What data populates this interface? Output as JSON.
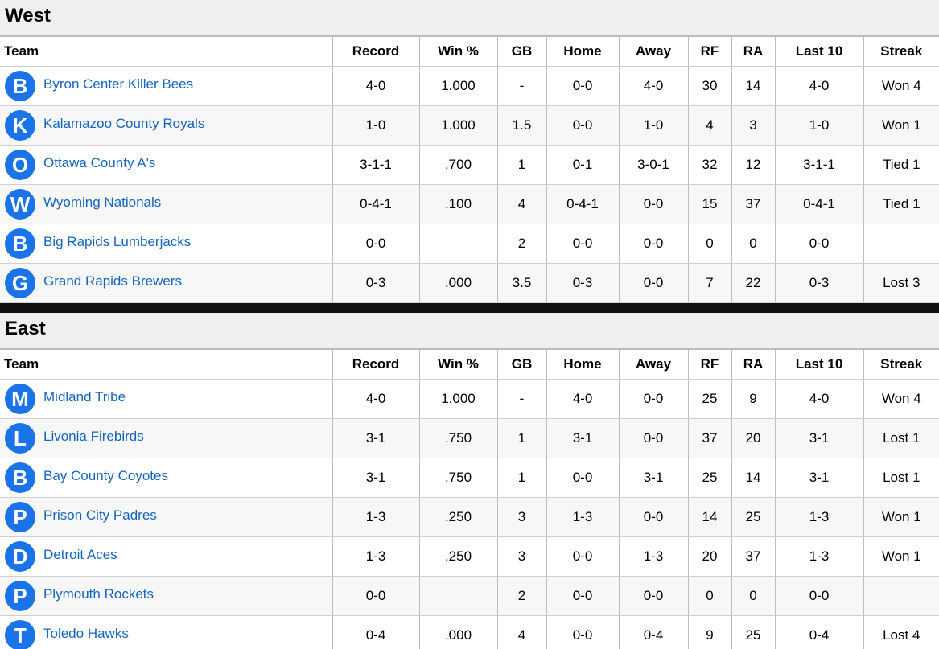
{
  "columns": [
    "Team",
    "Record",
    "Win %",
    "GB",
    "Home",
    "Away",
    "RF",
    "RA",
    "Last 10",
    "Streak"
  ],
  "colors": {
    "logo_bg": "#1a73e8",
    "link": "#1565c0",
    "header_bg": "#efefef",
    "separator": "#111111"
  },
  "divisions": [
    {
      "name": "West",
      "teams": [
        {
          "initial": "B",
          "name": "Byron Center Killer Bees",
          "record": "4-0",
          "win_pct": "1.000",
          "gb": "-",
          "home": "0-0",
          "away": "4-0",
          "rf": "30",
          "ra": "14",
          "last10": "4-0",
          "streak": "Won 4"
        },
        {
          "initial": "K",
          "name": "Kalamazoo County Royals",
          "record": "1-0",
          "win_pct": "1.000",
          "gb": "1.5",
          "home": "0-0",
          "away": "1-0",
          "rf": "4",
          "ra": "3",
          "last10": "1-0",
          "streak": "Won 1"
        },
        {
          "initial": "O",
          "name": "Ottawa County A's",
          "record": "3-1-1",
          "win_pct": ".700",
          "gb": "1",
          "home": "0-1",
          "away": "3-0-1",
          "rf": "32",
          "ra": "12",
          "last10": "3-1-1",
          "streak": "Tied 1"
        },
        {
          "initial": "W",
          "name": "Wyoming Nationals",
          "record": "0-4-1",
          "win_pct": ".100",
          "gb": "4",
          "home": "0-4-1",
          "away": "0-0",
          "rf": "15",
          "ra": "37",
          "last10": "0-4-1",
          "streak": "Tied 1"
        },
        {
          "initial": "B",
          "name": "Big Rapids Lumberjacks",
          "record": "0-0",
          "win_pct": "",
          "gb": "2",
          "home": "0-0",
          "away": "0-0",
          "rf": "0",
          "ra": "0",
          "last10": "0-0",
          "streak": ""
        },
        {
          "initial": "G",
          "name": "Grand Rapids Brewers",
          "record": "0-3",
          "win_pct": ".000",
          "gb": "3.5",
          "home": "0-3",
          "away": "0-0",
          "rf": "7",
          "ra": "22",
          "last10": "0-3",
          "streak": "Lost 3"
        }
      ]
    },
    {
      "name": "East",
      "teams": [
        {
          "initial": "M",
          "name": "Midland Tribe",
          "record": "4-0",
          "win_pct": "1.000",
          "gb": "-",
          "home": "4-0",
          "away": "0-0",
          "rf": "25",
          "ra": "9",
          "last10": "4-0",
          "streak": "Won 4"
        },
        {
          "initial": "L",
          "name": "Livonia Firebirds",
          "record": "3-1",
          "win_pct": ".750",
          "gb": "1",
          "home": "3-1",
          "away": "0-0",
          "rf": "37",
          "ra": "20",
          "last10": "3-1",
          "streak": "Lost 1"
        },
        {
          "initial": "B",
          "name": "Bay County Coyotes",
          "record": "3-1",
          "win_pct": ".750",
          "gb": "1",
          "home": "0-0",
          "away": "3-1",
          "rf": "25",
          "ra": "14",
          "last10": "3-1",
          "streak": "Lost 1"
        },
        {
          "initial": "P",
          "name": "Prison City Padres",
          "record": "1-3",
          "win_pct": ".250",
          "gb": "3",
          "home": "1-3",
          "away": "0-0",
          "rf": "14",
          "ra": "25",
          "last10": "1-3",
          "streak": "Won 1"
        },
        {
          "initial": "D",
          "name": "Detroit Aces",
          "record": "1-3",
          "win_pct": ".250",
          "gb": "3",
          "home": "0-0",
          "away": "1-3",
          "rf": "20",
          "ra": "37",
          "last10": "1-3",
          "streak": "Won 1"
        },
        {
          "initial": "P",
          "name": "Plymouth Rockets",
          "record": "0-0",
          "win_pct": "",
          "gb": "2",
          "home": "0-0",
          "away": "0-0",
          "rf": "0",
          "ra": "0",
          "last10": "0-0",
          "streak": ""
        },
        {
          "initial": "T",
          "name": "Toledo Hawks",
          "record": "0-4",
          "win_pct": ".000",
          "gb": "4",
          "home": "0-0",
          "away": "0-4",
          "rf": "9",
          "ra": "25",
          "last10": "0-4",
          "streak": "Lost 4"
        }
      ]
    }
  ]
}
